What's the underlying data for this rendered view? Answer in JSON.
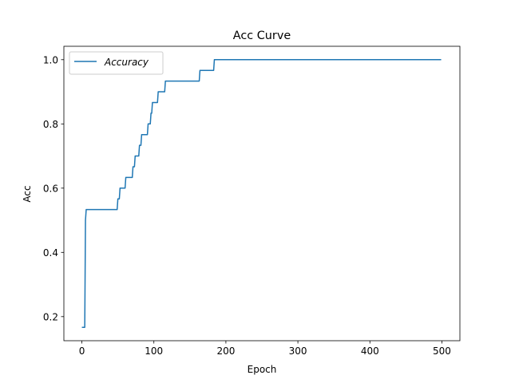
{
  "chart_data": {
    "type": "line",
    "title": "Acc Curve",
    "xlabel": "Epoch",
    "ylabel": "Acc",
    "xlim": [
      -25,
      525
    ],
    "ylim": [
      0.125,
      1.0417
    ],
    "xticks": [
      0,
      100,
      200,
      300,
      400,
      500
    ],
    "yticks": [
      0.2,
      0.4,
      0.6,
      0.8,
      1.0
    ],
    "xtick_labels": [
      "0",
      "100",
      "200",
      "300",
      "400",
      "500"
    ],
    "ytick_labels": [
      "0.2",
      "0.4",
      "0.6",
      "0.8",
      "1.0"
    ],
    "grid": false,
    "legend_position": "top-left",
    "series": [
      {
        "name": "Accuracy",
        "color": "#1f77b4",
        "points": [
          [
            0,
            0.1667
          ],
          [
            4,
            0.1667
          ],
          [
            5,
            0.5
          ],
          [
            6,
            0.5333
          ],
          [
            49,
            0.5333
          ],
          [
            50,
            0.5667
          ],
          [
            52,
            0.5667
          ],
          [
            53,
            0.6
          ],
          [
            60,
            0.6
          ],
          [
            61,
            0.6333
          ],
          [
            70,
            0.6333
          ],
          [
            71,
            0.6667
          ],
          [
            73,
            0.6667
          ],
          [
            74,
            0.7
          ],
          [
            79,
            0.7
          ],
          [
            80,
            0.7333
          ],
          [
            82,
            0.7333
          ],
          [
            83,
            0.7667
          ],
          [
            91,
            0.7667
          ],
          [
            92,
            0.8
          ],
          [
            95,
            0.8
          ],
          [
            96,
            0.8333
          ],
          [
            97,
            0.8333
          ],
          [
            98,
            0.8667
          ],
          [
            105,
            0.8667
          ],
          [
            106,
            0.9
          ],
          [
            115,
            0.9
          ],
          [
            116,
            0.9333
          ],
          [
            163,
            0.9333
          ],
          [
            164,
            0.9667
          ],
          [
            183,
            0.9667
          ],
          [
            184,
            1.0
          ],
          [
            499,
            1.0
          ]
        ]
      }
    ]
  }
}
